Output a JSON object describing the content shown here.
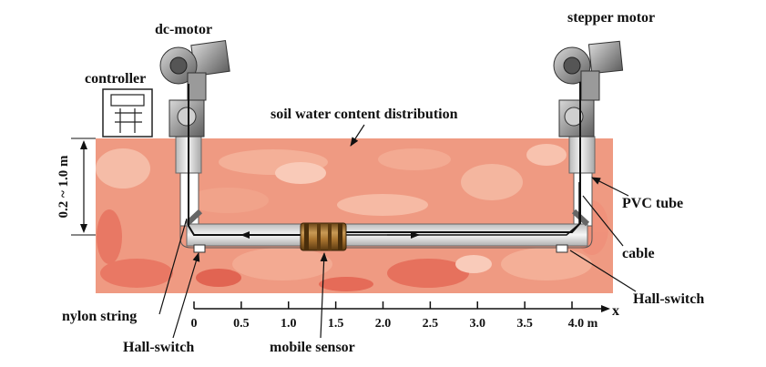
{
  "labels": {
    "dc_motor": "dc-motor",
    "stepper_motor": "stepper motor",
    "controller": "controller",
    "soil_distribution": "soil water content distribution",
    "depth": "0.2 ~ 1.0 m",
    "pvc_tube": "PVC tube",
    "cable": "cable",
    "hall_switch_right": "Hall-switch",
    "hall_switch_left": "Hall-switch",
    "nylon_string": "nylon string",
    "mobile_sensor": "mobile sensor"
  },
  "x_axis": {
    "label": "x",
    "ticks": [
      "0",
      "0.5",
      "1.0",
      "1.5",
      "2.0",
      "2.5",
      "3.0",
      "3.5",
      "4.0 m"
    ]
  },
  "colors": {
    "soil_light": "#f7b9a2",
    "soil_mid": "#ef8f78",
    "soil_dark": "#e25f4f",
    "tube": "#e6e6e6",
    "sensor_brown": "#9a6a2c"
  }
}
